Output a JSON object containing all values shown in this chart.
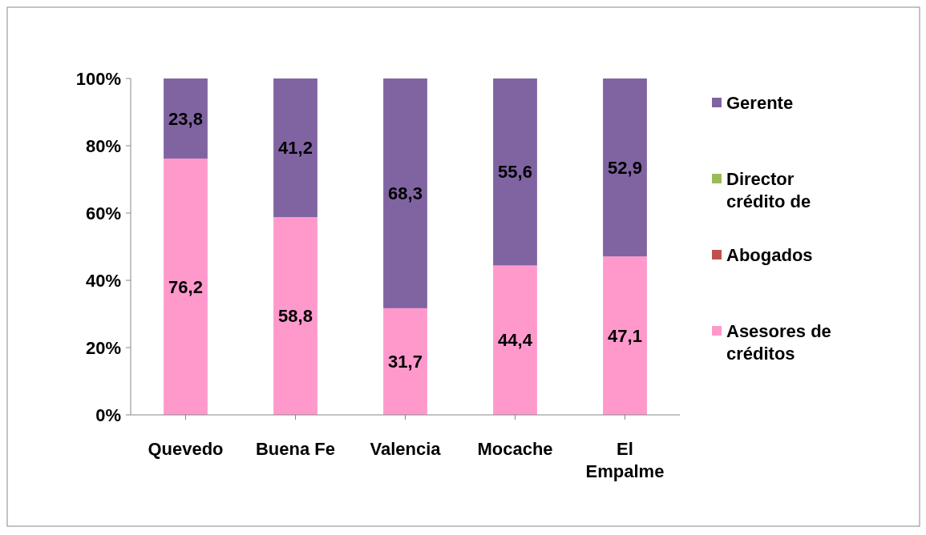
{
  "chart_data": {
    "type": "bar",
    "stacked": true,
    "categories": [
      "Quevedo",
      "Buena Fe",
      "Valencia",
      "Mocache",
      "El Empalme"
    ],
    "series": [
      {
        "name": "Asesores de créditos",
        "color": "#ff99cc",
        "values": [
          76.2,
          58.8,
          31.7,
          44.4,
          47.1
        ],
        "value_labels": [
          "76,2",
          "58,8",
          "31,7",
          "44,4",
          "47,1"
        ]
      },
      {
        "name": "Abogados",
        "color": "#c0504d",
        "values": [
          0,
          0,
          0,
          0,
          0
        ],
        "value_labels": [
          null,
          null,
          null,
          null,
          null
        ]
      },
      {
        "name": "Director crédito de",
        "color": "#9bbb59",
        "values": [
          0,
          0,
          0,
          0,
          0
        ],
        "value_labels": [
          null,
          null,
          null,
          null,
          null
        ]
      },
      {
        "name": "Gerente",
        "color": "#8064a2",
        "values": [
          23.8,
          41.2,
          68.3,
          55.6,
          52.9
        ],
        "value_labels": [
          "23,8",
          "41,2",
          "68,3",
          "55,6",
          "52,9"
        ]
      }
    ],
    "ylim": [
      0,
      100
    ],
    "yticks": [
      {
        "value": 0,
        "label": "0%"
      },
      {
        "value": 20,
        "label": "20%"
      },
      {
        "value": 40,
        "label": "40%"
      },
      {
        "value": 60,
        "label": "60%"
      },
      {
        "value": 80,
        "label": "80%"
      },
      {
        "value": 100,
        "label": "100%"
      }
    ],
    "grid": false,
    "legend": "right"
  }
}
